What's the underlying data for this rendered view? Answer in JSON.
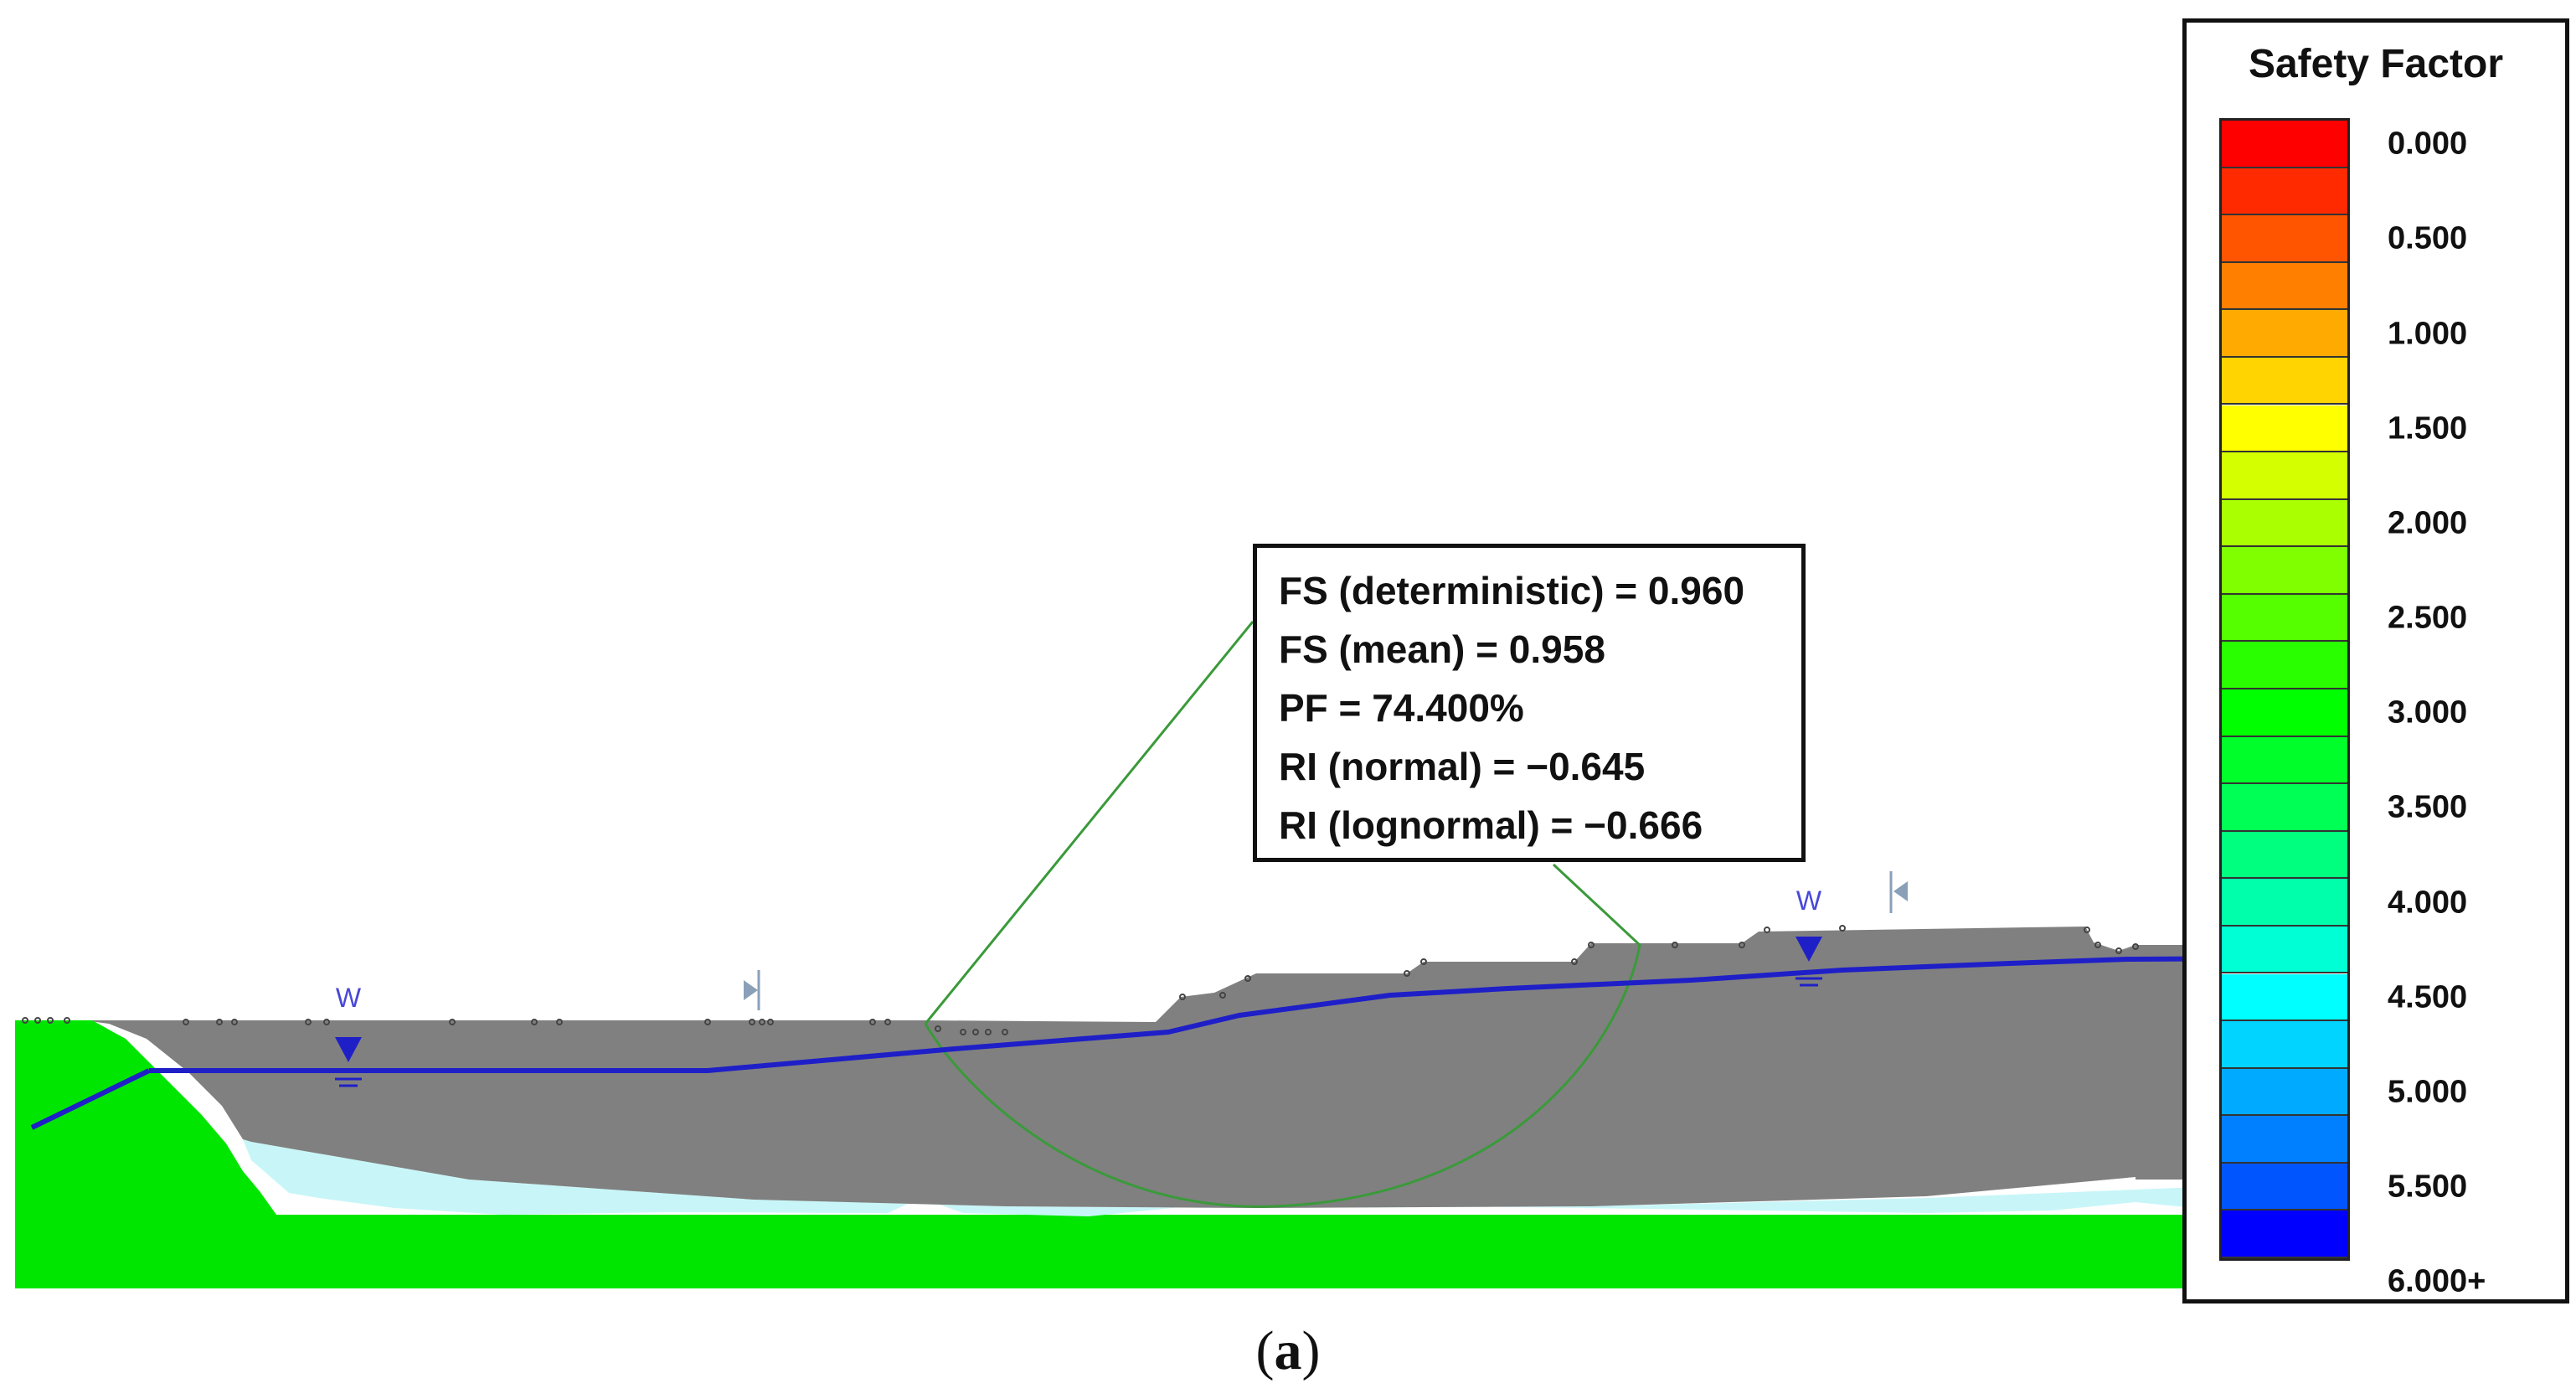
{
  "info_box": {
    "fs_deterministic": "FS (deterministic) = 0.960",
    "fs_mean": "FS (mean) = 0.958",
    "pf": "PF = 74.400%",
    "ri_normal": "RI (normal) = −0.645",
    "ri_lognormal": "RI (lognormal) = −0.666"
  },
  "water_table_labels": [
    "W",
    "W"
  ],
  "legend": {
    "title": "Safety Factor",
    "ticks": [
      "0.000",
      "0.500",
      "1.000",
      "1.500",
      "2.000",
      "2.500",
      "3.000",
      "3.500",
      "4.000",
      "4.500",
      "5.000",
      "5.500",
      "6.000+"
    ],
    "colors": [
      "#ff0000",
      "#ff2a00",
      "#ff5500",
      "#ff7f00",
      "#ffaa00",
      "#ffd400",
      "#ffff00",
      "#d4ff00",
      "#aaff00",
      "#7fff00",
      "#55ff00",
      "#2aff00",
      "#00ff00",
      "#00ff2a",
      "#00ff55",
      "#00ff7f",
      "#00ffaa",
      "#00ffd4",
      "#00ffff",
      "#00d4ff",
      "#00aaff",
      "#007fff",
      "#0055ff",
      "#0000ff"
    ]
  },
  "materials": {
    "upper_soil": "#808080",
    "weak_layer": "#c8f6f8",
    "bedrock": "#00e600",
    "water_table": "#1f1fc8",
    "slip_surface": "#3a9a3a"
  },
  "caption": {
    "open": "(",
    "letter": "a",
    "close": ")"
  }
}
